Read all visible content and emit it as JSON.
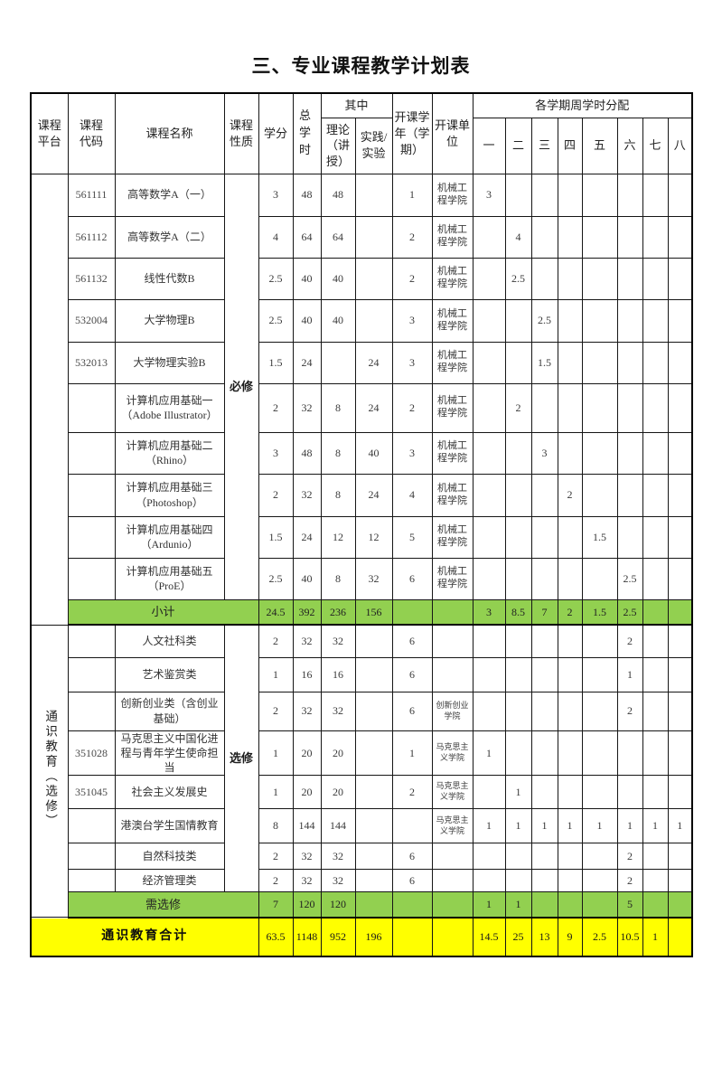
{
  "title": "三、专业课程教学计划表",
  "header": {
    "platform": "课程平台",
    "code": "课程代码",
    "name": "课程名称",
    "nature": "课程性质",
    "credits": "学分",
    "total_hours": "总学时",
    "among": "其中",
    "theory": "理论（讲授）",
    "practice": "实践/实验",
    "term": "开课学年（学期）",
    "unit": "开课单位",
    "weekly_title": "各学期周学时分配",
    "semesters": [
      "一",
      "二",
      "三",
      "四",
      "五",
      "六",
      "七",
      "八"
    ]
  },
  "sections": [
    {
      "platform": "",
      "nature": "必修",
      "rows": [
        {
          "code": "561111",
          "name": "高等数学A（一）",
          "credits": "3",
          "total": "48",
          "theory": "48",
          "practice": "",
          "term": "1",
          "unit": "机械工程学院",
          "weekly": [
            "3",
            "",
            "",
            "",
            "",
            "",
            "",
            ""
          ]
        },
        {
          "code": "561112",
          "name": "高等数学A（二）",
          "credits": "4",
          "total": "64",
          "theory": "64",
          "practice": "",
          "term": "2",
          "unit": "机械工程学院",
          "weekly": [
            "",
            "4",
            "",
            "",
            "",
            "",
            "",
            ""
          ]
        },
        {
          "code": "561132",
          "name": "线性代数B",
          "credits": "2.5",
          "total": "40",
          "theory": "40",
          "practice": "",
          "term": "2",
          "unit": "机械工程学院",
          "weekly": [
            "",
            "2.5",
            "",
            "",
            "",
            "",
            "",
            ""
          ]
        },
        {
          "code": "532004",
          "name": "大学物理B",
          "credits": "2.5",
          "total": "40",
          "theory": "40",
          "practice": "",
          "term": "3",
          "unit": "机械工程学院",
          "weekly": [
            "",
            "",
            "2.5",
            "",
            "",
            "",
            "",
            ""
          ]
        },
        {
          "code": "532013",
          "name": "大学物理实验B",
          "credits": "1.5",
          "total": "24",
          "theory": "",
          "practice": "24",
          "term": "3",
          "unit": "机械工程学院",
          "weekly": [
            "",
            "",
            "1.5",
            "",
            "",
            "",
            "",
            ""
          ]
        },
        {
          "code": "",
          "name": "计算机应用基础一（Adobe Illustrator）",
          "credits": "2",
          "total": "32",
          "theory": "8",
          "practice": "24",
          "term": "2",
          "unit": "机械工程学院",
          "weekly": [
            "",
            "2",
            "",
            "",
            "",
            "",
            "",
            ""
          ]
        },
        {
          "code": "",
          "name": "计算机应用基础二（Rhino）",
          "credits": "3",
          "total": "48",
          "theory": "8",
          "practice": "40",
          "term": "3",
          "unit": "机械工程学院",
          "weekly": [
            "",
            "",
            "3",
            "",
            "",
            "",
            "",
            ""
          ]
        },
        {
          "code": "",
          "name": "计算机应用基础三（Photoshop）",
          "credits": "2",
          "total": "32",
          "theory": "8",
          "practice": "24",
          "term": "4",
          "unit": "机械工程学院",
          "weekly": [
            "",
            "",
            "",
            "2",
            "",
            "",
            "",
            ""
          ]
        },
        {
          "code": "",
          "name": "计算机应用基础四（Ardunio）",
          "credits": "1.5",
          "total": "24",
          "theory": "12",
          "practice": "12",
          "term": "5",
          "unit": "机械工程学院",
          "weekly": [
            "",
            "",
            "",
            "",
            "1.5",
            "",
            "",
            ""
          ]
        },
        {
          "code": "",
          "name": "计算机应用基础五（ProE）",
          "credits": "2.5",
          "total": "40",
          "theory": "8",
          "practice": "32",
          "term": "6",
          "unit": "机械工程学院",
          "weekly": [
            "",
            "",
            "",
            "",
            "",
            "2.5",
            "",
            ""
          ]
        }
      ],
      "subtotal": {
        "label": "小计",
        "credits": "24.5",
        "total": "392",
        "theory": "236",
        "practice": "156",
        "term": "",
        "unit": "",
        "weekly": [
          "3",
          "8.5",
          "7",
          "2",
          "1.5",
          "2.5",
          "",
          ""
        ]
      }
    },
    {
      "platform": "通识教育（选修）",
      "nature": "选修",
      "rows": [
        {
          "code": "",
          "name": "人文社科类",
          "credits": "2",
          "total": "32",
          "theory": "32",
          "practice": "",
          "term": "6",
          "unit": "",
          "weekly": [
            "",
            "",
            "",
            "",
            "",
            "2",
            "",
            ""
          ]
        },
        {
          "code": "",
          "name": "艺术鉴赏类",
          "credits": "1",
          "total": "16",
          "theory": "16",
          "practice": "",
          "term": "6",
          "unit": "",
          "weekly": [
            "",
            "",
            "",
            "",
            "",
            "1",
            "",
            ""
          ]
        },
        {
          "code": "",
          "name": "创新创业类（含创业基础）",
          "credits": "2",
          "total": "32",
          "theory": "32",
          "practice": "",
          "term": "6",
          "unit": "创新创业学院",
          "weekly": [
            "",
            "",
            "",
            "",
            "",
            "2",
            "",
            ""
          ]
        },
        {
          "code": "351028",
          "name": "马克思主义中国化进程与青年学生使命担当",
          "credits": "1",
          "total": "20",
          "theory": "20",
          "practice": "",
          "term": "1",
          "unit": "马克思主义学院",
          "weekly": [
            "1",
            "",
            "",
            "",
            "",
            "",
            "",
            ""
          ]
        },
        {
          "code": "351045",
          "name": "社会主义发展史",
          "credits": "1",
          "total": "20",
          "theory": "20",
          "practice": "",
          "term": "2",
          "unit": "马克思主义学院",
          "weekly": [
            "",
            "1",
            "",
            "",
            "",
            "",
            "",
            ""
          ]
        },
        {
          "code": "",
          "name": "港澳台学生国情教育",
          "credits": "8",
          "total": "144",
          "theory": "144",
          "practice": "",
          "term": "",
          "unit": "马克思主义学院",
          "weekly": [
            "1",
            "1",
            "1",
            "1",
            "1",
            "1",
            "1",
            "1"
          ]
        },
        {
          "code": "",
          "name": "自然科技类",
          "credits": "2",
          "total": "32",
          "theory": "32",
          "practice": "",
          "term": "6",
          "unit": "",
          "weekly": [
            "",
            "",
            "",
            "",
            "",
            "2",
            "",
            ""
          ]
        },
        {
          "code": "",
          "name": "经济管理类",
          "credits": "2",
          "total": "32",
          "theory": "32",
          "practice": "",
          "term": "6",
          "unit": "",
          "weekly": [
            "",
            "",
            "",
            "",
            "",
            "2",
            "",
            ""
          ]
        }
      ],
      "subtotal": {
        "label": "需选修",
        "credits": "7",
        "total": "120",
        "theory": "120",
        "practice": "",
        "term": "",
        "unit": "",
        "weekly": [
          "1",
          "1",
          "",
          "",
          "",
          "5",
          "",
          ""
        ]
      }
    }
  ],
  "grand_total": {
    "label": "通识教育合计",
    "credits": "63.5",
    "total": "1148",
    "theory": "952",
    "practice": "196",
    "term": "",
    "unit": "",
    "weekly": [
      "14.5",
      "25",
      "13",
      "9",
      "2.5",
      "10.5",
      "1",
      ""
    ]
  },
  "colors": {
    "subtotal_bg": "#92D050",
    "grand_total_bg": "#FFFF00",
    "border": "#000000"
  }
}
